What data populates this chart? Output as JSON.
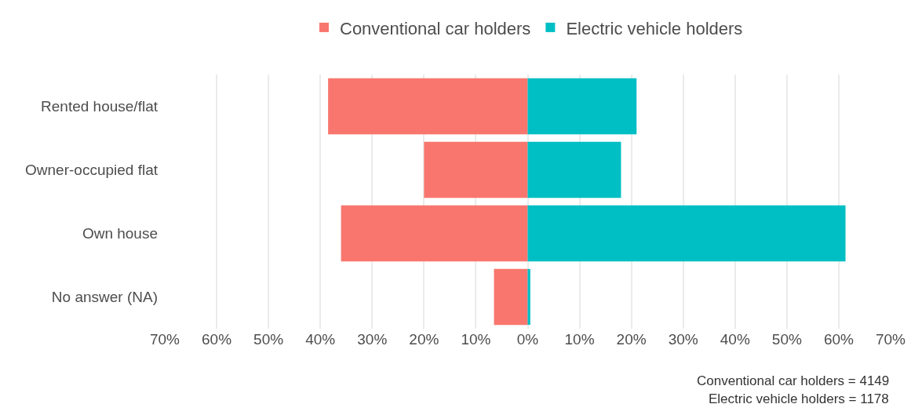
{
  "chart_data": {
    "type": "bar",
    "orientation": "horizontal",
    "categories": [
      "Rented house/flat",
      "Owner-occupied flat",
      "Own house",
      "No answer (NA)"
    ],
    "series": [
      {
        "name": "Conventional car holders",
        "color": "#f8766d",
        "values": [
          -38.5,
          -20,
          -36,
          -6.5
        ]
      },
      {
        "name": "Electric vehicle holders",
        "color": "#00bfc4",
        "values": [
          21,
          18,
          61.3,
          0.5
        ]
      }
    ],
    "xlim": [
      -70,
      70
    ],
    "stacked": true,
    "xticks": [
      {
        "value": -70,
        "label": "70%"
      },
      {
        "value": -60,
        "label": "60%"
      },
      {
        "value": -50,
        "label": "50%"
      },
      {
        "value": -40,
        "label": "40%"
      },
      {
        "value": -30,
        "label": "30%"
      },
      {
        "value": -20,
        "label": "20%"
      },
      {
        "value": -10,
        "label": "10%"
      },
      {
        "value": 0,
        "label": "0%"
      },
      {
        "value": 10,
        "label": "10%"
      },
      {
        "value": 20,
        "label": "20%"
      },
      {
        "value": 30,
        "label": "30%"
      },
      {
        "value": 40,
        "label": "40%"
      },
      {
        "value": 50,
        "label": "50%"
      },
      {
        "value": 60,
        "label": "60%"
      },
      {
        "value": 70,
        "label": "70%"
      }
    ],
    "grid": "x",
    "legend": "top",
    "annotations": [
      "Conventional car holders = 4149",
      "Electric vehicle holders = 1178"
    ]
  }
}
